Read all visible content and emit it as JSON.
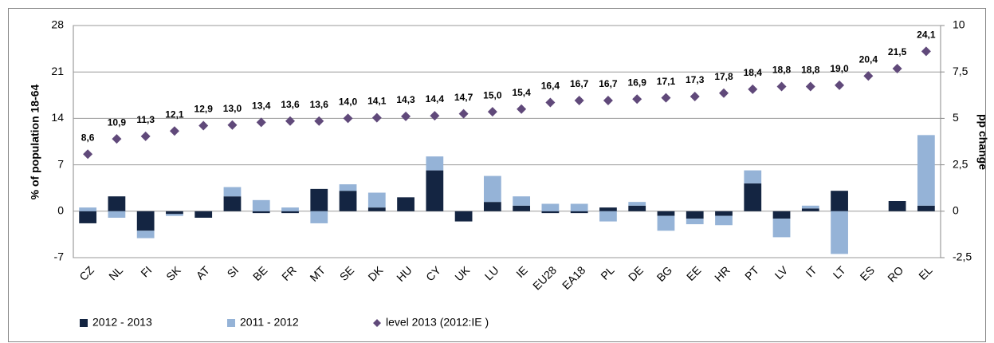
{
  "chart_data": {
    "type": "bar",
    "stacked": true,
    "grid": true,
    "y_label": "% of population 18-64",
    "y2_label": "pp change",
    "categories": [
      "CZ",
      "NL",
      "FI",
      "SK",
      "AT",
      "SI",
      "BE",
      "FR",
      "MT",
      "SE",
      "DK",
      "HU",
      "CY",
      "UK",
      "LU",
      "IE",
      "EU28",
      "EA18",
      "PL",
      "DE",
      "BG",
      "EE",
      "HR",
      "PT",
      "LV",
      "IT",
      "LT",
      "ES",
      "RO",
      "EL"
    ],
    "ylim": [
      -7,
      28
    ],
    "yticks": [
      -7,
      0,
      7,
      14,
      21,
      28
    ],
    "y2lim": [
      -2.5,
      10
    ],
    "y2ticks": [
      {
        "value": -2.5,
        "label": "-2,5"
      },
      0,
      {
        "value": 2.5,
        "label": "2,5"
      },
      5,
      {
        "value": 7.5,
        "label": "7,5"
      },
      10
    ],
    "series": [
      {
        "name": "2012 - 2013",
        "type": "bar",
        "axis": "y2",
        "color": "#142542",
        "values": [
          -0.65,
          0.8,
          -1.05,
          -0.15,
          -0.35,
          0.8,
          -0.1,
          -0.1,
          1.2,
          1.1,
          0.2,
          0.75,
          2.2,
          -0.55,
          0.5,
          0.3,
          -0.1,
          -0.1,
          0.2,
          0.3,
          -0.25,
          -0.4,
          -0.25,
          1.5,
          -0.4,
          0.15,
          1.1,
          0,
          0.55,
          0.3
        ]
      },
      {
        "name": "2011 - 2012",
        "type": "bar",
        "axis": "y2",
        "color": "#95b3d7",
        "values": [
          0.2,
          -0.35,
          -0.4,
          -0.1,
          0,
          0.5,
          0.6,
          0.2,
          -0.65,
          0.35,
          0.8,
          0,
          0.75,
          0,
          1.4,
          0.5,
          0.4,
          0.4,
          -0.55,
          0.2,
          -0.8,
          -0.3,
          -0.5,
          0.7,
          -1.0,
          0.15,
          -2.3,
          0,
          0,
          3.8
        ]
      },
      {
        "name": "level 2013 (2012:IE )",
        "type": "scatter",
        "axis": "y",
        "color": "#60497a",
        "values": [
          8.6,
          10.9,
          11.3,
          12.1,
          12.9,
          13.0,
          13.4,
          13.6,
          13.6,
          14.0,
          14.1,
          14.3,
          14.4,
          14.7,
          15.0,
          15.4,
          16.4,
          16.7,
          16.7,
          16.9,
          17.1,
          17.3,
          17.8,
          18.4,
          18.8,
          18.8,
          19.0,
          20.4,
          21.5,
          24.1
        ],
        "value_labels": [
          "8,6",
          "10,9",
          "11,3",
          "12,1",
          "12,9",
          "13,0",
          "13,4",
          "13,6",
          "13,6",
          "14,0",
          "14,1",
          "14,3",
          "14,4",
          "14,7",
          "15,0",
          "15,4",
          "16,4",
          "16,7",
          "16,7",
          "16,9",
          "17,1",
          "17,3",
          "17,8",
          "18,4",
          "18,8",
          "18,8",
          "19,0",
          "20,4",
          "21,5",
          "24,1"
        ]
      }
    ]
  }
}
